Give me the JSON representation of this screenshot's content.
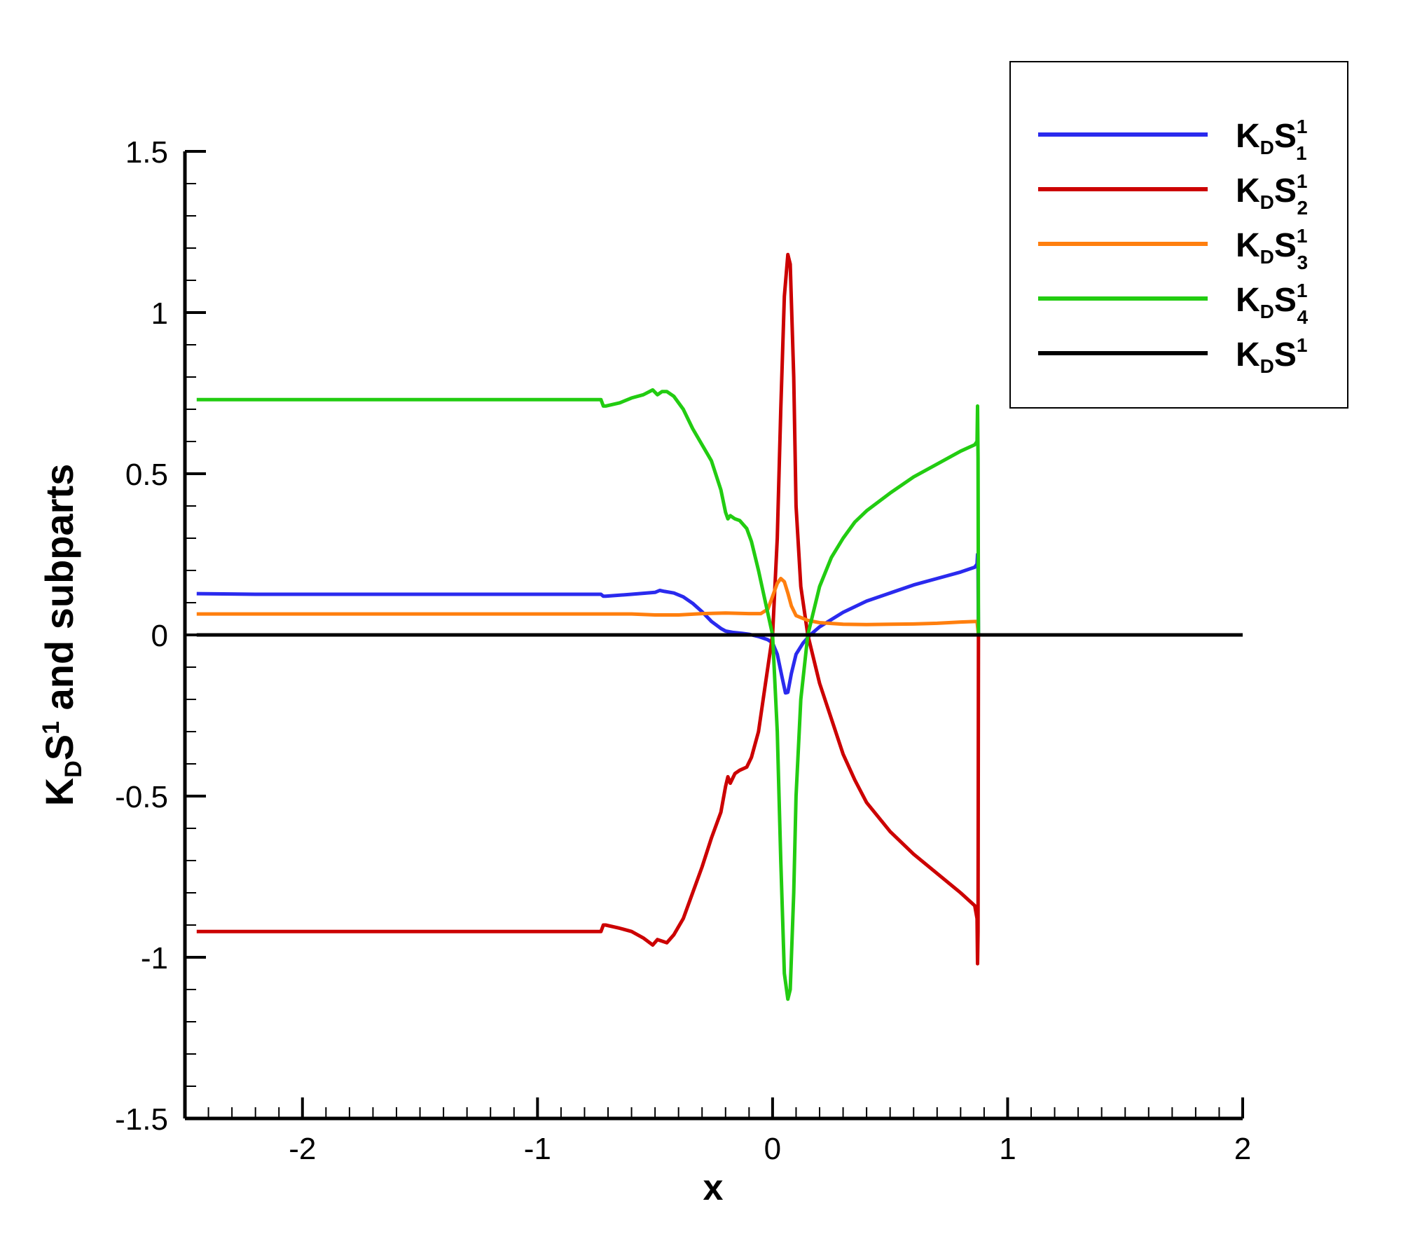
{
  "chart_data": {
    "type": "line",
    "xlabel": "x",
    "ylabel": {
      "base": "K",
      "sub": "D",
      "main": "S",
      "sup": "1",
      "rest": " and subparts"
    },
    "xlim": [
      -2.5,
      2
    ],
    "ylim": [
      -1.5,
      1.5
    ],
    "x_ticks": [
      -2,
      -1,
      0,
      1,
      2
    ],
    "y_ticks": [
      -1.5,
      -1,
      -0.5,
      0,
      0.5,
      1,
      1.5
    ],
    "x_tick_labels": [
      "-2",
      "-1",
      "0",
      "1",
      "2"
    ],
    "y_tick_labels": [
      "-1.5",
      "-1",
      "-0.5",
      "0",
      "0.5",
      "1",
      "1.5"
    ],
    "grid": false,
    "legend_position": "top-right",
    "series": [
      {
        "legend": {
          "base": "K",
          "sub1": "D",
          "main": "S",
          "sup": "1",
          "sub2": "1"
        },
        "color": "#2a2aee",
        "points": [
          [
            -2.45,
            0.128
          ],
          [
            -2.3,
            0.127
          ],
          [
            -2.2,
            0.126
          ],
          [
            -2.0,
            0.126
          ],
          [
            -1.5,
            0.126
          ],
          [
            -1.0,
            0.126
          ],
          [
            -0.73,
            0.126
          ],
          [
            -0.72,
            0.12
          ],
          [
            -0.71,
            0.12
          ],
          [
            -0.6,
            0.126
          ],
          [
            -0.5,
            0.132
          ],
          [
            -0.48,
            0.138
          ],
          [
            -0.46,
            0.135
          ],
          [
            -0.42,
            0.13
          ],
          [
            -0.38,
            0.118
          ],
          [
            -0.34,
            0.098
          ],
          [
            -0.3,
            0.072
          ],
          [
            -0.26,
            0.042
          ],
          [
            -0.22,
            0.02
          ],
          [
            -0.2,
            0.012
          ],
          [
            -0.17,
            0.008
          ],
          [
            -0.13,
            0.005
          ],
          [
            -0.1,
            0.002
          ],
          [
            -0.06,
            -0.005
          ],
          [
            -0.02,
            -0.015
          ],
          [
            0.0,
            -0.025
          ],
          [
            0.02,
            -0.06
          ],
          [
            0.04,
            -0.13
          ],
          [
            0.055,
            -0.18
          ],
          [
            0.065,
            -0.178
          ],
          [
            0.08,
            -0.12
          ],
          [
            0.1,
            -0.06
          ],
          [
            0.13,
            -0.025
          ],
          [
            0.16,
            0.0
          ],
          [
            0.2,
            0.025
          ],
          [
            0.3,
            0.07
          ],
          [
            0.4,
            0.105
          ],
          [
            0.5,
            0.13
          ],
          [
            0.6,
            0.155
          ],
          [
            0.7,
            0.175
          ],
          [
            0.8,
            0.195
          ],
          [
            0.86,
            0.21
          ],
          [
            0.87,
            0.22
          ],
          [
            0.872,
            0.25
          ],
          [
            0.874,
            0.2
          ],
          [
            0.876,
            0.0
          ]
        ]
      },
      {
        "legend": {
          "base": "K",
          "sub1": "D",
          "main": "S",
          "sup": "1",
          "sub2": "2"
        },
        "color": "#cc0000",
        "points": [
          [
            -2.45,
            -0.92
          ],
          [
            -2.0,
            -0.92
          ],
          [
            -1.5,
            -0.92
          ],
          [
            -1.0,
            -0.92
          ],
          [
            -0.73,
            -0.92
          ],
          [
            -0.72,
            -0.9
          ],
          [
            -0.71,
            -0.9
          ],
          [
            -0.65,
            -0.91
          ],
          [
            -0.6,
            -0.92
          ],
          [
            -0.55,
            -0.94
          ],
          [
            -0.51,
            -0.962
          ],
          [
            -0.49,
            -0.945
          ],
          [
            -0.47,
            -0.95
          ],
          [
            -0.45,
            -0.955
          ],
          [
            -0.42,
            -0.93
          ],
          [
            -0.38,
            -0.88
          ],
          [
            -0.34,
            -0.8
          ],
          [
            -0.3,
            -0.72
          ],
          [
            -0.26,
            -0.63
          ],
          [
            -0.22,
            -0.55
          ],
          [
            -0.2,
            -0.47
          ],
          [
            -0.19,
            -0.44
          ],
          [
            -0.18,
            -0.46
          ],
          [
            -0.16,
            -0.43
          ],
          [
            -0.14,
            -0.42
          ],
          [
            -0.11,
            -0.41
          ],
          [
            -0.09,
            -0.38
          ],
          [
            -0.06,
            -0.3
          ],
          [
            -0.03,
            -0.15
          ],
          [
            0.0,
            0.0
          ],
          [
            0.02,
            0.3
          ],
          [
            0.035,
            0.7
          ],
          [
            0.05,
            1.05
          ],
          [
            0.065,
            1.18
          ],
          [
            0.075,
            1.15
          ],
          [
            0.09,
            0.8
          ],
          [
            0.1,
            0.4
          ],
          [
            0.12,
            0.15
          ],
          [
            0.15,
            0.0
          ],
          [
            0.2,
            -0.15
          ],
          [
            0.25,
            -0.26
          ],
          [
            0.3,
            -0.37
          ],
          [
            0.35,
            -0.45
          ],
          [
            0.4,
            -0.52
          ],
          [
            0.5,
            -0.61
          ],
          [
            0.6,
            -0.68
          ],
          [
            0.7,
            -0.74
          ],
          [
            0.8,
            -0.8
          ],
          [
            0.86,
            -0.84
          ],
          [
            0.87,
            -0.88
          ],
          [
            0.872,
            -1.02
          ],
          [
            0.874,
            -0.92
          ],
          [
            0.876,
            0.0
          ]
        ]
      },
      {
        "legend": {
          "base": "K",
          "sub1": "D",
          "main": "S",
          "sup": "1",
          "sub2": "3"
        },
        "color": "#ff7f0e",
        "points": [
          [
            -2.45,
            0.065
          ],
          [
            -2.0,
            0.065
          ],
          [
            -1.5,
            0.065
          ],
          [
            -1.0,
            0.065
          ],
          [
            -0.73,
            0.065
          ],
          [
            -0.6,
            0.065
          ],
          [
            -0.5,
            0.062
          ],
          [
            -0.4,
            0.062
          ],
          [
            -0.3,
            0.066
          ],
          [
            -0.2,
            0.068
          ],
          [
            -0.1,
            0.066
          ],
          [
            -0.05,
            0.066
          ],
          [
            -0.02,
            0.08
          ],
          [
            0.0,
            0.12
          ],
          [
            0.02,
            0.16
          ],
          [
            0.035,
            0.175
          ],
          [
            0.05,
            0.165
          ],
          [
            0.065,
            0.13
          ],
          [
            0.08,
            0.09
          ],
          [
            0.1,
            0.06
          ],
          [
            0.15,
            0.045
          ],
          [
            0.2,
            0.038
          ],
          [
            0.3,
            0.033
          ],
          [
            0.4,
            0.032
          ],
          [
            0.5,
            0.033
          ],
          [
            0.6,
            0.034
          ],
          [
            0.7,
            0.036
          ],
          [
            0.8,
            0.04
          ],
          [
            0.87,
            0.042
          ],
          [
            0.876,
            0.0
          ]
        ]
      },
      {
        "legend": {
          "base": "K",
          "sub1": "D",
          "main": "S",
          "sup": "1",
          "sub2": "4"
        },
        "color": "#22cc11",
        "points": [
          [
            -2.45,
            0.73
          ],
          [
            -2.0,
            0.73
          ],
          [
            -1.5,
            0.73
          ],
          [
            -1.0,
            0.73
          ],
          [
            -0.73,
            0.73
          ],
          [
            -0.72,
            0.71
          ],
          [
            -0.71,
            0.71
          ],
          [
            -0.65,
            0.72
          ],
          [
            -0.6,
            0.735
          ],
          [
            -0.55,
            0.745
          ],
          [
            -0.51,
            0.76
          ],
          [
            -0.49,
            0.745
          ],
          [
            -0.47,
            0.755
          ],
          [
            -0.45,
            0.755
          ],
          [
            -0.42,
            0.74
          ],
          [
            -0.38,
            0.7
          ],
          [
            -0.34,
            0.64
          ],
          [
            -0.3,
            0.59
          ],
          [
            -0.26,
            0.54
          ],
          [
            -0.22,
            0.45
          ],
          [
            -0.2,
            0.38
          ],
          [
            -0.19,
            0.36
          ],
          [
            -0.18,
            0.37
          ],
          [
            -0.16,
            0.36
          ],
          [
            -0.14,
            0.355
          ],
          [
            -0.11,
            0.33
          ],
          [
            -0.09,
            0.29
          ],
          [
            -0.06,
            0.2
          ],
          [
            -0.03,
            0.1
          ],
          [
            0.0,
            0.0
          ],
          [
            0.02,
            -0.3
          ],
          [
            0.035,
            -0.7
          ],
          [
            0.05,
            -1.05
          ],
          [
            0.065,
            -1.13
          ],
          [
            0.075,
            -1.1
          ],
          [
            0.09,
            -0.8
          ],
          [
            0.1,
            -0.5
          ],
          [
            0.12,
            -0.2
          ],
          [
            0.15,
            0.0
          ],
          [
            0.2,
            0.15
          ],
          [
            0.25,
            0.24
          ],
          [
            0.3,
            0.3
          ],
          [
            0.35,
            0.35
          ],
          [
            0.4,
            0.385
          ],
          [
            0.5,
            0.44
          ],
          [
            0.6,
            0.49
          ],
          [
            0.7,
            0.53
          ],
          [
            0.8,
            0.57
          ],
          [
            0.86,
            0.59
          ],
          [
            0.87,
            0.6
          ],
          [
            0.872,
            0.71
          ],
          [
            0.874,
            0.55
          ],
          [
            0.876,
            0.0
          ]
        ]
      },
      {
        "legend": {
          "base": "K",
          "sub1": "D",
          "main": "S",
          "sup": "1",
          "sub2": ""
        },
        "color": "#000000",
        "points": [
          [
            -2.45,
            0.0
          ],
          [
            -2.0,
            0.0
          ],
          [
            -1.0,
            0.0
          ],
          [
            0.0,
            0.0
          ],
          [
            1.0,
            0.0
          ],
          [
            2.0,
            0.0
          ]
        ]
      }
    ]
  }
}
